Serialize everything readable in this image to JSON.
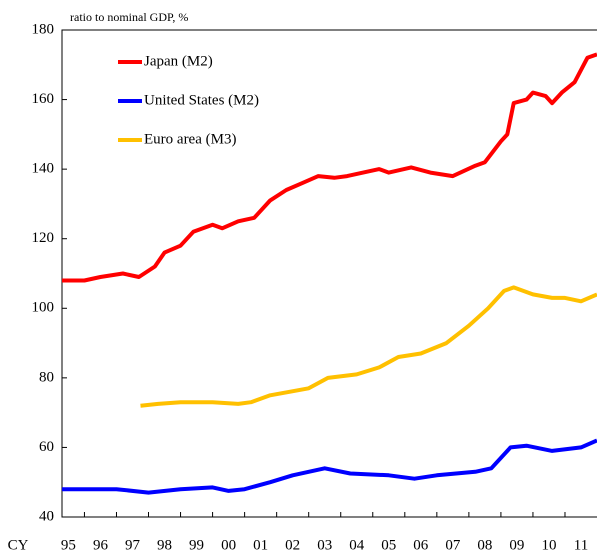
{
  "chart_data": {
    "type": "line",
    "annotation": "ratio to nominal GDP, %",
    "xlabel": "CY",
    "xlim": [
      1995.3,
      2012.0
    ],
    "xticks": [
      {
        "value": 1995.5,
        "label": "95"
      },
      {
        "value": 1996.5,
        "label": "96"
      },
      {
        "value": 1997.5,
        "label": "97"
      },
      {
        "value": 1998.5,
        "label": "98"
      },
      {
        "value": 1999.5,
        "label": "99"
      },
      {
        "value": 2000.5,
        "label": "00"
      },
      {
        "value": 2001.5,
        "label": "01"
      },
      {
        "value": 2002.5,
        "label": "02"
      },
      {
        "value": 2003.5,
        "label": "03"
      },
      {
        "value": 2004.5,
        "label": "04"
      },
      {
        "value": 2005.5,
        "label": "05"
      },
      {
        "value": 2006.5,
        "label": "06"
      },
      {
        "value": 2007.5,
        "label": "07"
      },
      {
        "value": 2008.5,
        "label": "08"
      },
      {
        "value": 2009.5,
        "label": "09"
      },
      {
        "value": 2010.5,
        "label": "10"
      },
      {
        "value": 2011.5,
        "label": "11"
      }
    ],
    "ylim": [
      40,
      180
    ],
    "yticks": [
      40,
      60,
      80,
      100,
      120,
      140,
      160,
      180
    ],
    "series": [
      {
        "name": "Japan (M2)",
        "color": "#ff0000",
        "x": [
          1995.3,
          1996.0,
          1996.5,
          1997.2,
          1997.7,
          1998.2,
          1998.5,
          1999.0,
          1999.4,
          2000.0,
          2000.3,
          2000.8,
          2001.3,
          2001.8,
          2002.3,
          2002.8,
          2003.3,
          2003.8,
          2004.2,
          2004.7,
          2005.2,
          2005.5,
          2006.2,
          2006.8,
          2007.5,
          2008.2,
          2008.5,
          2009.0,
          2009.2,
          2009.4,
          2009.8,
          2010.0,
          2010.4,
          2010.6,
          2010.9,
          2011.3,
          2011.7,
          2012.0
        ],
        "values": [
          108,
          108,
          109,
          110,
          109,
          112,
          116,
          118,
          122,
          124,
          123,
          125,
          126,
          131,
          134,
          136,
          138,
          137.5,
          138,
          139,
          140,
          139,
          140.5,
          139,
          138,
          141,
          142,
          148,
          150,
          159,
          160,
          162,
          161,
          159,
          162,
          165,
          172,
          173
        ]
      },
      {
        "name": "United States (M2)",
        "color": "#0000ff",
        "x": [
          1995.3,
          1997.0,
          1998.0,
          1999.0,
          2000.0,
          2000.5,
          2001.0,
          2001.8,
          2002.5,
          2003.0,
          2003.5,
          2004.3,
          2005.5,
          2006.3,
          2007.0,
          2008.2,
          2008.7,
          2009.3,
          2009.8,
          2010.6,
          2011.5,
          2012.0
        ],
        "values": [
          48,
          48,
          47,
          48,
          48.5,
          47.5,
          48,
          50,
          52,
          53,
          54,
          52.5,
          52,
          51,
          52,
          53,
          54,
          60,
          60.5,
          59,
          60,
          62
        ]
      },
      {
        "name": "Euro area (M3)",
        "color": "#ffc000",
        "x": [
          1997.75,
          1998.3,
          1999.0,
          2000.0,
          2000.8,
          2001.2,
          2001.8,
          2002.4,
          2003.0,
          2003.6,
          2004.5,
          2005.2,
          2005.8,
          2006.5,
          2007.3,
          2008.0,
          2008.6,
          2009.1,
          2009.4,
          2010.0,
          2010.6,
          2011.0,
          2011.5,
          2012.0
        ],
        "values": [
          72,
          72.5,
          73,
          73,
          72.5,
          73,
          75,
          76,
          77,
          80,
          81,
          83,
          86,
          87,
          90,
          95,
          100,
          105,
          106,
          104,
          103,
          103,
          102,
          104
        ]
      }
    ]
  }
}
